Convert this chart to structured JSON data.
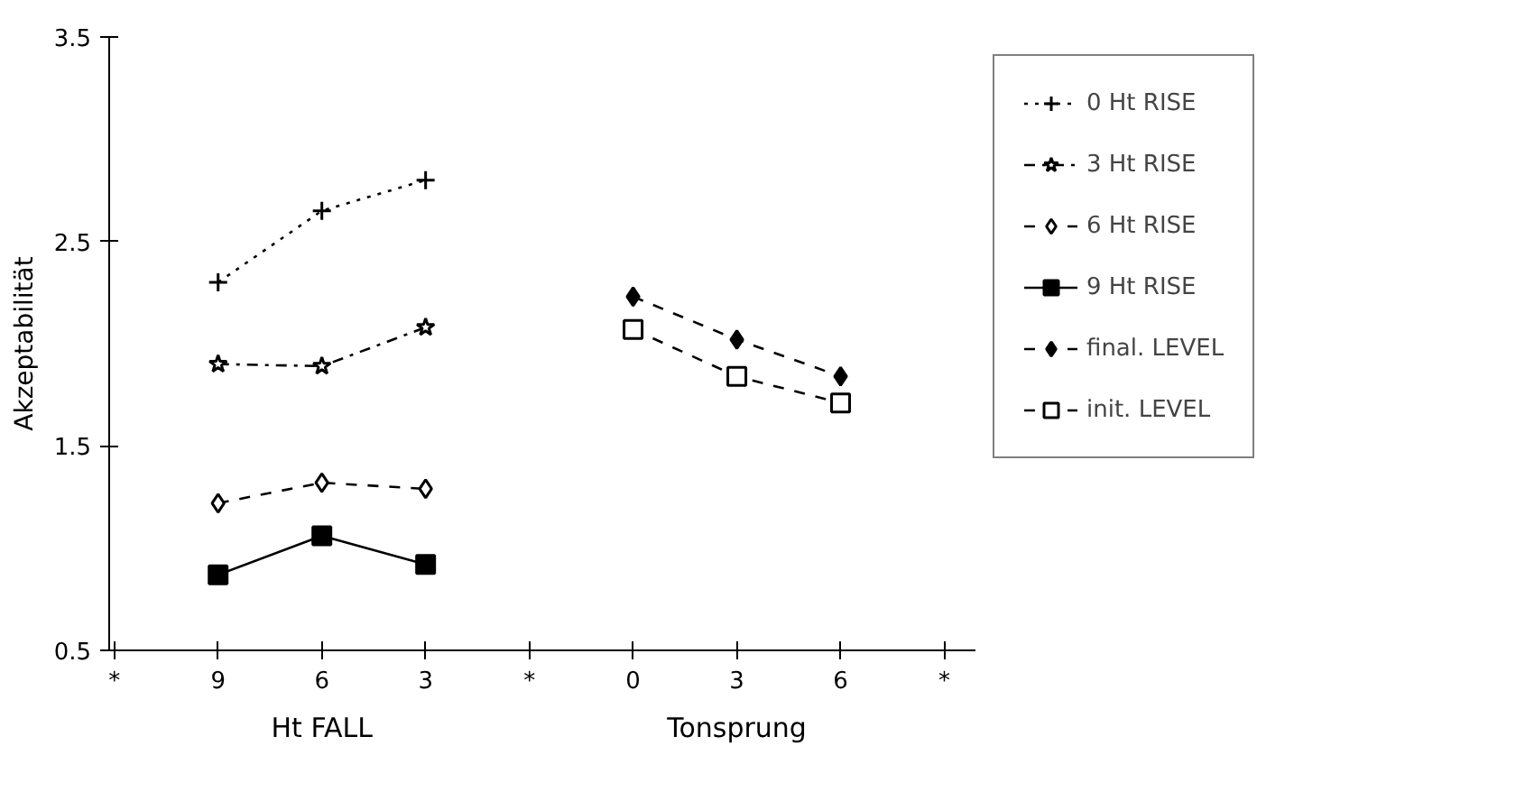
{
  "chart_data": {
    "type": "line",
    "ylabel": "Akzeptabilität",
    "categories": [
      "*",
      "9",
      "6",
      "3",
      "*",
      "0",
      "3",
      "6",
      "*"
    ],
    "annotations": [
      "Ht FALL",
      "Tonsprung"
    ],
    "series": [
      {
        "name": "0 Ht RISE",
        "color": "#000000",
        "values": [
          null,
          2.3,
          2.65,
          2.8,
          null,
          null,
          null,
          null,
          null
        ],
        "marker": "cross",
        "line_style": "dotted"
      },
      {
        "name": "3 Ht RISE",
        "color": "#000000",
        "values": [
          null,
          1.9,
          1.89,
          2.08,
          null,
          null,
          null,
          null,
          null
        ],
        "marker": "star",
        "line_style": "dashdot"
      },
      {
        "name": "6 Ht RISE",
        "color": "#000000",
        "values": [
          null,
          1.22,
          1.32,
          1.29,
          null,
          null,
          null,
          null,
          null
        ],
        "marker": "diamond_open",
        "line_style": "dashed"
      },
      {
        "name": "9 Ht RISE",
        "color": "#000000",
        "values": [
          null,
          0.87,
          1.06,
          0.92,
          null,
          null,
          null,
          null,
          null
        ],
        "marker": "square",
        "line_style": "solid"
      },
      {
        "name": "final. LEVEL",
        "color": "#000000",
        "values": [
          null,
          null,
          null,
          null,
          null,
          2.23,
          2.02,
          1.84,
          null
        ],
        "marker": "diamond",
        "line_style": "dashed"
      },
      {
        "name": "init. LEVEL",
        "color": "#000000",
        "values": [
          null,
          null,
          null,
          null,
          null,
          2.07,
          1.84,
          1.71,
          null
        ],
        "marker": "square_open",
        "line_style": "dashed"
      }
    ],
    "ylim": [
      0.5,
      3.5
    ],
    "yticks": [
      0.5,
      1.5,
      2.5,
      3.5
    ],
    "grid": false,
    "legend": "right"
  }
}
